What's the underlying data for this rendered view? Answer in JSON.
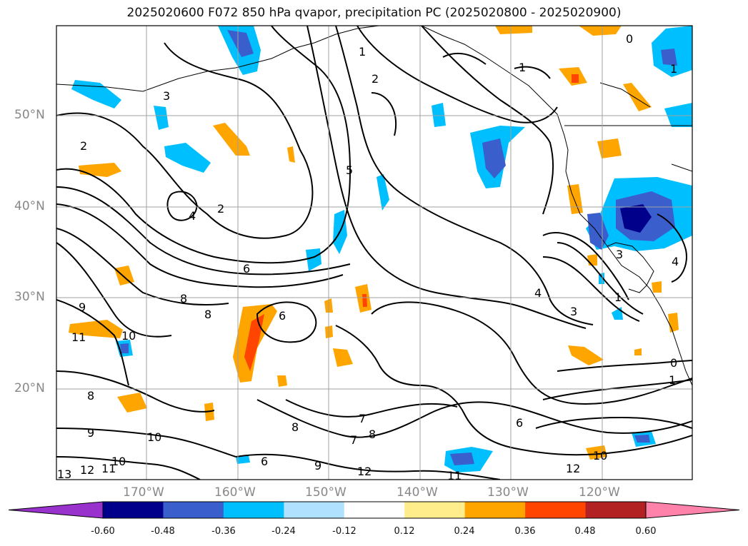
{
  "title": "2025020600 F072 850 hPa qvapor, precipitation PC (2025020800 - 2025020900)",
  "lat_labels": [
    "50°N",
    "40°N",
    "30°N",
    "20°N"
  ],
  "lon_labels": [
    "170°W",
    "160°W",
    "150°W",
    "140°W",
    "130°W",
    "120°W"
  ],
  "contour_labels": [
    "1",
    "2",
    "3",
    "4",
    "5",
    "6",
    "7",
    "8",
    "9",
    "10",
    "11",
    "12",
    "13",
    "0"
  ],
  "colorbar": {
    "colors": [
      "#9932cc",
      "#00008b",
      "#3a5fcd",
      "#00bfff",
      "#b0e2ff",
      "#ffffff",
      "#ffec8b",
      "#ffa500",
      "#ff4500",
      "#b22222",
      "#ff82ab"
    ],
    "ticks": [
      "-0.60",
      "-0.48",
      "-0.36",
      "-0.24",
      "-0.12",
      "0.12",
      "0.24",
      "0.36",
      "0.48",
      "0.60"
    ]
  }
}
